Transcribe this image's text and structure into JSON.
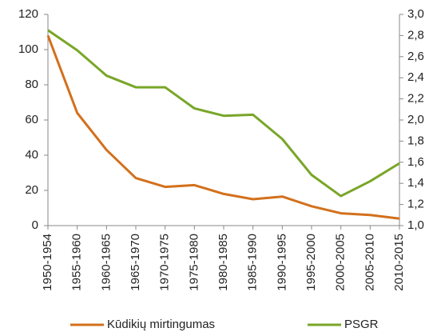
{
  "chart_data": {
    "type": "line",
    "categories": [
      "1950-1954",
      "1955-1960",
      "1960-1965",
      "1965-1970",
      "1970-1975",
      "1975-1980",
      "1980-1985",
      "1985-1990",
      "1990-1995",
      "1995-2000",
      "2000-2005",
      "2005-2010",
      "2010-2015"
    ],
    "series": [
      {
        "name": "Kūdikių mirtingumas",
        "color": "#d3701c",
        "values": [
          108,
          64,
          43,
          27,
          22,
          23,
          18,
          15,
          16.5,
          11,
          7,
          6,
          4
        ]
      },
      {
        "name": "PSGR",
        "color": "#79a628",
        "axis": "y2",
        "values": [
          2.85,
          2.66,
          2.42,
          2.31,
          2.31,
          2.11,
          2.04,
          2.05,
          1.82,
          1.48,
          1.28,
          1.42,
          1.59
        ]
      }
    ],
    "ylim": [
      0,
      120
    ],
    "yticks": [
      0,
      20,
      40,
      60,
      80,
      100,
      120
    ],
    "y2lim": [
      1.0,
      3.0
    ],
    "y2ticks": [
      {
        "value": 1.0,
        "label": "1,0"
      },
      {
        "value": 1.2,
        "label": "1,2"
      },
      {
        "value": 1.4,
        "label": "1,4"
      },
      {
        "value": 1.6,
        "label": "1,6"
      },
      {
        "value": 1.8,
        "label": "1,8"
      },
      {
        "value": 2.0,
        "label": "2,0"
      },
      {
        "value": 2.2,
        "label": "2,2"
      },
      {
        "value": 2.4,
        "label": "2,4"
      },
      {
        "value": 2.6,
        "label": "2,6"
      },
      {
        "value": 2.8,
        "label": "2,8"
      },
      {
        "value": 3.0,
        "label": "3,0"
      }
    ],
    "grid": false,
    "legend": "bottom"
  }
}
